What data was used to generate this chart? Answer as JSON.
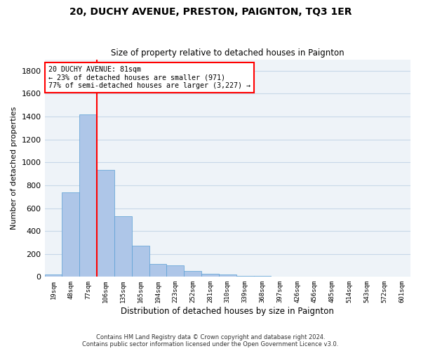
{
  "title": "20, DUCHY AVENUE, PRESTON, PAIGNTON, TQ3 1ER",
  "subtitle": "Size of property relative to detached houses in Paignton",
  "xlabel": "Distribution of detached houses by size in Paignton",
  "ylabel": "Number of detached properties",
  "footer_line1": "Contains HM Land Registry data © Crown copyright and database right 2024.",
  "footer_line2": "Contains public sector information licensed under the Open Government Licence v3.0.",
  "categories": [
    "19sqm",
    "48sqm",
    "77sqm",
    "106sqm",
    "135sqm",
    "165sqm",
    "194sqm",
    "223sqm",
    "252sqm",
    "281sqm",
    "310sqm",
    "339sqm",
    "368sqm",
    "397sqm",
    "426sqm",
    "456sqm",
    "485sqm",
    "514sqm",
    "543sqm",
    "572sqm",
    "601sqm"
  ],
  "values": [
    20,
    740,
    1420,
    935,
    530,
    270,
    110,
    100,
    50,
    28,
    18,
    10,
    8,
    5,
    3,
    2,
    2,
    1,
    1,
    0,
    1
  ],
  "bar_color": "#aec6e8",
  "bar_edge_color": "#5a9fd4",
  "grid_color": "#c8d8e8",
  "background_color": "#eef3f8",
  "annotation_line1": "20 DUCHY AVENUE: 81sqm",
  "annotation_line2": "← 23% of detached houses are smaller (971)",
  "annotation_line3": "77% of semi-detached houses are larger (3,227) →",
  "annotation_box_color": "white",
  "annotation_box_edge": "red",
  "vline_bar_index": 2,
  "vline_color": "red",
  "ylim": [
    0,
    1900
  ],
  "yticks": [
    0,
    200,
    400,
    600,
    800,
    1000,
    1200,
    1400,
    1600,
    1800
  ],
  "bar_width": 1.0
}
